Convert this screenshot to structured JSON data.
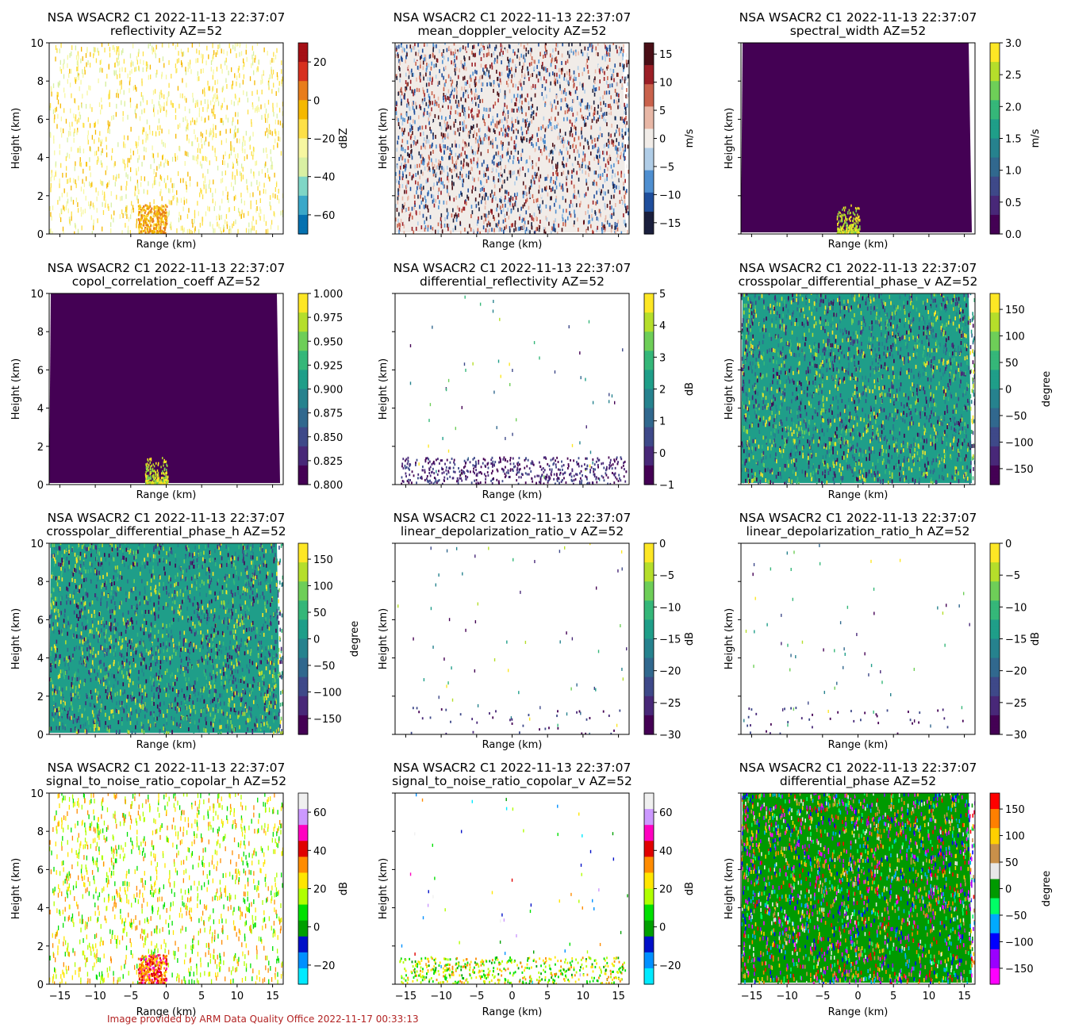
{
  "footer": "Image provided by ARM Data Quality Office 2022-11-17 00:33:13",
  "chart_data": [
    {
      "type": "heatmap",
      "title": "NSA WSACR2 C1 2022-11-13 22:37:07",
      "subtitle": "reflectivity  AZ=52",
      "xlabel": "Range (km)",
      "ylabel": "Height (km)",
      "xlim": [
        -16.5,
        16.5
      ],
      "ylim": [
        0,
        10
      ],
      "colorbar": {
        "label": "dBZ",
        "range": [
          -70,
          30
        ],
        "ticks": [
          20,
          0,
          -20,
          -40,
          -60
        ],
        "cmap": "homeyer"
      },
      "pattern": "speckle",
      "fill_fraction": 0.35
    },
    {
      "type": "heatmap",
      "title": "NSA WSACR2 C1 2022-11-13 22:37:07",
      "subtitle": "mean_doppler_velocity  AZ=52",
      "xlabel": "Range (km)",
      "ylabel": "Height (km)",
      "xlim": [
        -16.5,
        16.5
      ],
      "ylim": [
        0,
        10
      ],
      "colorbar": {
        "label": "m/s",
        "range": [
          -17,
          17
        ],
        "ticks": [
          15,
          10,
          5,
          0,
          -5,
          -10,
          -15
        ],
        "cmap": "balance"
      },
      "pattern": "dense",
      "fill_fraction": 1.0
    },
    {
      "type": "heatmap",
      "title": "NSA WSACR2 C1 2022-11-13 22:37:07",
      "subtitle": "spectral_width  AZ=52",
      "xlabel": "Range (km)",
      "ylabel": "Height (km)",
      "xlim": [
        -16.5,
        16.5
      ],
      "ylim": [
        0,
        10
      ],
      "colorbar": {
        "label": "m/s",
        "range": [
          0,
          3
        ],
        "ticks": [
          3.0,
          2.5,
          2.0,
          1.5,
          1.0,
          0.5,
          0.0
        ],
        "cmap": "viridis"
      },
      "pattern": "solid",
      "fill_fraction": 1.0
    },
    {
      "type": "heatmap",
      "title": "NSA WSACR2 C1 2022-11-13 22:37:07",
      "subtitle": "copol_correlation_coeff  AZ=52",
      "xlabel": "Range (km)",
      "ylabel": "Height (km)",
      "xlim": [
        -16.5,
        16.5
      ],
      "ylim": [
        0,
        10
      ],
      "colorbar": {
        "label": "",
        "range": [
          0.8,
          1.0
        ],
        "ticks": [
          1.0,
          0.975,
          0.95,
          0.925,
          0.9,
          0.875,
          0.85,
          0.825,
          0.8
        ],
        "cmap": "viridis"
      },
      "pattern": "solid",
      "fill_fraction": 1.0
    },
    {
      "type": "heatmap",
      "title": "NSA WSACR2 C1 2022-11-13 22:37:07",
      "subtitle": "differential_reflectivity  AZ=52",
      "xlabel": "Range (km)",
      "ylabel": "Height (km)",
      "xlim": [
        -16.5,
        16.5
      ],
      "ylim": [
        0,
        10
      ],
      "colorbar": {
        "label": "dB",
        "range": [
          -1,
          5
        ],
        "ticks": [
          5,
          4,
          3,
          2,
          1,
          0,
          -1
        ],
        "cmap": "viridis"
      },
      "pattern": "sparse",
      "fill_fraction": 0.02
    },
    {
      "type": "heatmap",
      "title": "NSA WSACR2 C1 2022-11-13 22:37:07",
      "subtitle": "crosspolar_differential_phase_v  AZ=52",
      "xlabel": "Range (km)",
      "ylabel": "Height (km)",
      "xlim": [
        -16.5,
        16.5
      ],
      "ylim": [
        0,
        10
      ],
      "colorbar": {
        "label": "degree",
        "range": [
          -180,
          180
        ],
        "ticks": [
          150,
          100,
          50,
          0,
          -50,
          -100,
          -150
        ],
        "cmap": "viridis"
      },
      "pattern": "dense",
      "fill_fraction": 1.0
    },
    {
      "type": "heatmap",
      "title": "NSA WSACR2 C1 2022-11-13 22:37:07",
      "subtitle": "crosspolar_differential_phase_h  AZ=52",
      "xlabel": "Range (km)",
      "ylabel": "Height (km)",
      "xlim": [
        -16.5,
        16.5
      ],
      "ylim": [
        0,
        10
      ],
      "colorbar": {
        "label": "degree",
        "range": [
          -180,
          180
        ],
        "ticks": [
          150,
          100,
          50,
          0,
          -50,
          -100,
          -150
        ],
        "cmap": "viridis"
      },
      "pattern": "dense",
      "fill_fraction": 1.0
    },
    {
      "type": "heatmap",
      "title": "NSA WSACR2 C1 2022-11-13 22:37:07",
      "subtitle": "linear_depolarization_ratio_v  AZ=52",
      "xlabel": "Range (km)",
      "ylabel": "Height (km)",
      "xlim": [
        -16.5,
        16.5
      ],
      "ylim": [
        0,
        10
      ],
      "colorbar": {
        "label": "dB",
        "range": [
          -30,
          0
        ],
        "ticks": [
          0,
          -5,
          -10,
          -15,
          -20,
          -25,
          -30
        ],
        "cmap": "viridis"
      },
      "pattern": "sparse",
      "fill_fraction": 0.01
    },
    {
      "type": "heatmap",
      "title": "NSA WSACR2 C1 2022-11-13 22:37:07",
      "subtitle": "linear_depolarization_ratio_h  AZ=52",
      "xlabel": "Range (km)",
      "ylabel": "Height (km)",
      "xlim": [
        -16.5,
        16.5
      ],
      "ylim": [
        0,
        10
      ],
      "colorbar": {
        "label": "dB",
        "range": [
          -30,
          0
        ],
        "ticks": [
          0,
          -5,
          -10,
          -15,
          -20,
          -25,
          -30
        ],
        "cmap": "viridis"
      },
      "pattern": "sparse",
      "fill_fraction": 0.01
    },
    {
      "type": "heatmap",
      "title": "NSA WSACR2 C1 2022-11-13 22:37:07",
      "subtitle": "signal_to_noise_ratio_copolar_h  AZ=52",
      "xlabel": "Range (km)",
      "ylabel": "Height (km)",
      "xlim": [
        -16.5,
        16.5
      ],
      "ylim": [
        0,
        10
      ],
      "colorbar": {
        "label": "dB",
        "range": [
          -30,
          70
        ],
        "ticks": [
          60,
          40,
          20,
          0,
          -20
        ],
        "cmap": "nipy_spectral"
      },
      "pattern": "speckle",
      "fill_fraction": 0.35
    },
    {
      "type": "heatmap",
      "title": "NSA WSACR2 C1 2022-11-13 22:37:07",
      "subtitle": "signal_to_noise_ratio_copolar_v  AZ=52",
      "xlabel": "Range (km)",
      "ylabel": "Height (km)",
      "xlim": [
        -16.5,
        16.5
      ],
      "ylim": [
        0,
        10
      ],
      "colorbar": {
        "label": "dB",
        "range": [
          -30,
          70
        ],
        "ticks": [
          60,
          40,
          20,
          0,
          -20
        ],
        "cmap": "nipy_spectral"
      },
      "pattern": "sparse",
      "fill_fraction": 0.04
    },
    {
      "type": "heatmap",
      "title": "NSA WSACR2 C1 2022-11-13 22:37:07",
      "subtitle": "differential_phase  AZ=52",
      "xlabel": "Range (km)",
      "ylabel": "Height (km)",
      "xlim": [
        -16.5,
        16.5
      ],
      "ylim": [
        0,
        10
      ],
      "colorbar": {
        "label": "degree",
        "range": [
          -180,
          180
        ],
        "ticks": [
          150,
          100,
          50,
          0,
          -50,
          -100,
          -150
        ],
        "cmap": "phase"
      },
      "pattern": "dense",
      "fill_fraction": 1.0
    }
  ],
  "shared": {
    "xticks": [
      -15,
      -10,
      -5,
      0,
      5,
      10,
      15
    ],
    "yticks": [
      0,
      2,
      4,
      6,
      8,
      10
    ]
  }
}
